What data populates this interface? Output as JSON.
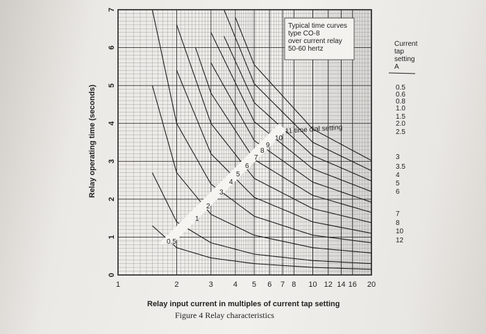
{
  "chart_data": {
    "type": "line",
    "xlabel": "Relay input current in multiples of current tap setting",
    "ylabel": "Relay operating time (seconds)",
    "x_ticks": [
      "1",
      "2",
      "3",
      "4",
      "5",
      "6",
      "7",
      "8",
      "10",
      "12",
      "14",
      "16",
      "20"
    ],
    "x_tick_values": [
      1,
      2,
      3,
      4,
      5,
      6,
      7,
      8,
      10,
      12,
      14,
      16,
      20
    ],
    "y_ticks": [
      "0",
      "1",
      "2",
      "3",
      "4",
      "5",
      "6",
      "7"
    ],
    "xlim": [
      1,
      20
    ],
    "ylim": [
      0,
      7
    ],
    "x_scale": "log",
    "grid": true,
    "series": [
      {
        "name": "0.5",
        "x": [
          1.5,
          2,
          3,
          5,
          10,
          20
        ],
        "y": [
          1.3,
          0.72,
          0.45,
          0.3,
          0.2,
          0.15
        ]
      },
      {
        "name": "1",
        "x": [
          1.5,
          2,
          3,
          5,
          10,
          20
        ],
        "y": [
          2.7,
          1.4,
          0.85,
          0.55,
          0.38,
          0.3
        ]
      },
      {
        "name": "2",
        "x": [
          1.5,
          2,
          3,
          5,
          10,
          20
        ],
        "y": [
          5.0,
          2.7,
          1.6,
          1.05,
          0.72,
          0.58
        ]
      },
      {
        "name": "3",
        "x": [
          1.5,
          2,
          3,
          5,
          10,
          20
        ],
        "y": [
          7.0,
          4.0,
          2.4,
          1.55,
          1.05,
          0.85
        ]
      },
      {
        "name": "4",
        "x": [
          2,
          3,
          5,
          10,
          20
        ],
        "y": [
          5.4,
          3.2,
          2.05,
          1.4,
          1.1
        ]
      },
      {
        "name": "5",
        "x": [
          2,
          3,
          5,
          10,
          20
        ],
        "y": [
          6.6,
          4.0,
          2.55,
          1.75,
          1.38
        ]
      },
      {
        "name": "6",
        "x": [
          2.5,
          3,
          5,
          10,
          20
        ],
        "y": [
          6.0,
          4.8,
          3.05,
          2.1,
          1.65
        ]
      },
      {
        "name": "7",
        "x": [
          3,
          5,
          10,
          20
        ],
        "y": [
          5.6,
          3.55,
          2.45,
          1.92
        ]
      },
      {
        "name": "8",
        "x": [
          3,
          5,
          10,
          20
        ],
        "y": [
          6.4,
          4.05,
          2.8,
          2.2
        ]
      },
      {
        "name": "9",
        "x": [
          3.5,
          5,
          10,
          20
        ],
        "y": [
          6.3,
          4.55,
          3.15,
          2.48
        ]
      },
      {
        "name": "10",
        "x": [
          3.5,
          5,
          10,
          20
        ],
        "y": [
          7.0,
          5.05,
          3.5,
          2.75
        ]
      },
      {
        "name": "11",
        "x": [
          4,
          5,
          10,
          20
        ],
        "y": [
          6.8,
          5.55,
          3.85,
          3.02
        ]
      }
    ]
  },
  "annotation": [
    "Typical time curves",
    "type CO-8",
    "over current relay",
    "50-60 hertz"
  ],
  "dial_label": "11 time dial setting",
  "dial_numbers": [
    "0.5",
    "1",
    "2",
    "3",
    "4",
    "5",
    "6",
    "7",
    "8",
    "9",
    "10"
  ],
  "caption": "Figure 4 Relay characteristics",
  "tap_table": {
    "header": [
      "Current",
      "tap",
      "setting",
      "A"
    ],
    "values": [
      "0.5",
      "0.6",
      "0.8",
      "1.0",
      "1.5",
      "2.0",
      "2.5",
      "3",
      "3.5",
      "4",
      "5",
      "6",
      "7",
      "8",
      "10",
      "12"
    ]
  }
}
